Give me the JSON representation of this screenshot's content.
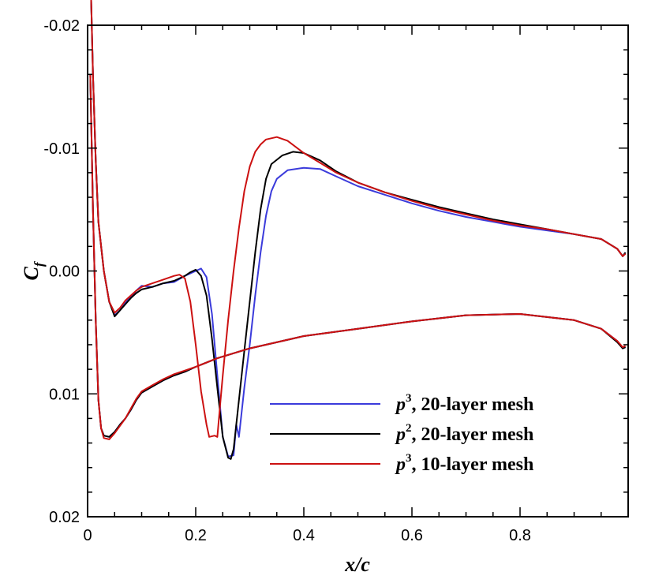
{
  "chart_data": {
    "type": "line",
    "xlabel": "x/c",
    "ylabel": {
      "main": "C",
      "sub": "f"
    },
    "xlim": [
      0,
      1.0
    ],
    "ylim": [
      -0.02,
      0.02
    ],
    "y_inverted": true,
    "grid": false,
    "legend_position": "lower-right",
    "x_ticks": [
      {
        "v": 0.0,
        "label": "0"
      },
      {
        "v": 0.2,
        "label": "0.2"
      },
      {
        "v": 0.4,
        "label": "0.4"
      },
      {
        "v": 0.6,
        "label": "0.6"
      },
      {
        "v": 0.8,
        "label": "0.8"
      }
    ],
    "y_ticks": [
      {
        "v": -0.02,
        "label": "-0.02"
      },
      {
        "v": -0.01,
        "label": "-0.01"
      },
      {
        "v": 0.0,
        "label": "0.00"
      },
      {
        "v": 0.01,
        "label": "0.01"
      },
      {
        "v": 0.02,
        "label": "0.02"
      }
    ],
    "series": [
      {
        "name": "p3, 20-layer mesh",
        "legend": {
          "var": "p",
          "sup": "3",
          "text": ", 20-layer mesh"
        },
        "color": "#3b3bdb",
        "upper": [
          [
            0.005,
            -0.025
          ],
          [
            0.01,
            -0.016
          ],
          [
            0.015,
            -0.009
          ],
          [
            0.02,
            -0.004
          ],
          [
            0.03,
            0.0
          ],
          [
            0.04,
            0.0025
          ],
          [
            0.05,
            0.0036
          ],
          [
            0.06,
            0.0032
          ],
          [
            0.07,
            0.0026
          ],
          [
            0.08,
            0.0021
          ],
          [
            0.09,
            0.0016
          ],
          [
            0.1,
            0.0012
          ],
          [
            0.12,
            0.0013
          ],
          [
            0.14,
            0.001
          ],
          [
            0.16,
            0.0009
          ],
          [
            0.18,
            0.0004
          ],
          [
            0.2,
            0.0
          ],
          [
            0.21,
            -0.0002
          ],
          [
            0.22,
            0.0005
          ],
          [
            0.23,
            0.0035
          ],
          [
            0.24,
            0.0085
          ],
          [
            0.25,
            0.0135
          ],
          [
            0.26,
            0.0151
          ],
          [
            0.27,
            0.015
          ],
          [
            0.275,
            0.0125
          ],
          [
            0.28,
            0.0135
          ],
          [
            0.29,
            0.0095
          ],
          [
            0.3,
            0.006
          ],
          [
            0.31,
            0.002
          ],
          [
            0.32,
            -0.0015
          ],
          [
            0.33,
            -0.0045
          ],
          [
            0.34,
            -0.0065
          ],
          [
            0.35,
            -0.0075
          ],
          [
            0.37,
            -0.0082
          ],
          [
            0.4,
            -0.0084
          ],
          [
            0.43,
            -0.0083
          ],
          [
            0.46,
            -0.0077
          ],
          [
            0.5,
            -0.0069
          ],
          [
            0.55,
            -0.0062
          ],
          [
            0.6,
            -0.0055
          ],
          [
            0.65,
            -0.0049
          ],
          [
            0.7,
            -0.0044
          ],
          [
            0.75,
            -0.004
          ],
          [
            0.8,
            -0.0036
          ],
          [
            0.85,
            -0.0033
          ],
          [
            0.9,
            -0.003
          ],
          [
            0.95,
            -0.0026
          ],
          [
            0.98,
            -0.0018
          ],
          [
            0.99,
            -0.0012
          ],
          [
            0.995,
            -0.0015
          ]
        ],
        "lower": [
          [
            0.005,
            -0.016
          ],
          [
            0.01,
            -0.005
          ],
          [
            0.015,
            0.004
          ],
          [
            0.02,
            0.0105
          ],
          [
            0.025,
            0.0128
          ],
          [
            0.03,
            0.0134
          ],
          [
            0.04,
            0.0135
          ],
          [
            0.05,
            0.0131
          ],
          [
            0.06,
            0.0125
          ],
          [
            0.07,
            0.012
          ],
          [
            0.08,
            0.0113
          ],
          [
            0.09,
            0.0105
          ],
          [
            0.1,
            0.0099
          ],
          [
            0.12,
            0.0094
          ],
          [
            0.14,
            0.0089
          ],
          [
            0.16,
            0.0085
          ],
          [
            0.18,
            0.0082
          ],
          [
            0.2,
            0.0078
          ],
          [
            0.24,
            0.0071
          ],
          [
            0.3,
            0.0063
          ],
          [
            0.4,
            0.0053
          ],
          [
            0.5,
            0.0047
          ],
          [
            0.6,
            0.0041
          ],
          [
            0.7,
            0.0036
          ],
          [
            0.8,
            0.0035
          ],
          [
            0.9,
            0.004
          ],
          [
            0.95,
            0.0047
          ],
          [
            0.98,
            0.0057
          ],
          [
            0.99,
            0.0063
          ],
          [
            0.995,
            0.0062
          ]
        ]
      },
      {
        "name": "p2, 20-layer mesh",
        "legend": {
          "var": "p",
          "sup": "2",
          "text": ", 20-layer mesh"
        },
        "color": "#000000",
        "upper": [
          [
            0.005,
            -0.025
          ],
          [
            0.01,
            -0.016
          ],
          [
            0.015,
            -0.009
          ],
          [
            0.02,
            -0.004
          ],
          [
            0.03,
            0.0
          ],
          [
            0.04,
            0.0025
          ],
          [
            0.05,
            0.0037
          ],
          [
            0.06,
            0.0032
          ],
          [
            0.07,
            0.0027
          ],
          [
            0.08,
            0.0022
          ],
          [
            0.09,
            0.0018
          ],
          [
            0.1,
            0.0015
          ],
          [
            0.12,
            0.0013
          ],
          [
            0.14,
            0.001
          ],
          [
            0.16,
            0.0008
          ],
          [
            0.18,
            0.0004
          ],
          [
            0.19,
            0.0001
          ],
          [
            0.2,
            -0.0001
          ],
          [
            0.21,
            0.0004
          ],
          [
            0.22,
            0.002
          ],
          [
            0.23,
            0.0055
          ],
          [
            0.24,
            0.0095
          ],
          [
            0.25,
            0.0135
          ],
          [
            0.26,
            0.0152
          ],
          [
            0.265,
            0.0153
          ],
          [
            0.27,
            0.0145
          ],
          [
            0.28,
            0.0105
          ],
          [
            0.29,
            0.0065
          ],
          [
            0.3,
            0.0025
          ],
          [
            0.31,
            -0.0015
          ],
          [
            0.32,
            -0.005
          ],
          [
            0.33,
            -0.0075
          ],
          [
            0.34,
            -0.0087
          ],
          [
            0.36,
            -0.0094
          ],
          [
            0.38,
            -0.0097
          ],
          [
            0.4,
            -0.0096
          ],
          [
            0.43,
            -0.009
          ],
          [
            0.46,
            -0.0081
          ],
          [
            0.5,
            -0.0072
          ],
          [
            0.55,
            -0.0064
          ],
          [
            0.6,
            -0.0058
          ],
          [
            0.65,
            -0.0052
          ],
          [
            0.7,
            -0.0047
          ],
          [
            0.75,
            -0.0042
          ],
          [
            0.8,
            -0.0038
          ],
          [
            0.85,
            -0.0034
          ],
          [
            0.9,
            -0.003
          ],
          [
            0.95,
            -0.0026
          ],
          [
            0.98,
            -0.0018
          ],
          [
            0.99,
            -0.0012
          ],
          [
            0.995,
            -0.0015
          ]
        ],
        "lower": [
          [
            0.005,
            -0.016
          ],
          [
            0.01,
            -0.005
          ],
          [
            0.015,
            0.004
          ],
          [
            0.02,
            0.0105
          ],
          [
            0.025,
            0.0128
          ],
          [
            0.03,
            0.0134
          ],
          [
            0.04,
            0.0135
          ],
          [
            0.05,
            0.0131
          ],
          [
            0.06,
            0.0125
          ],
          [
            0.07,
            0.012
          ],
          [
            0.08,
            0.0113
          ],
          [
            0.09,
            0.0105
          ],
          [
            0.1,
            0.0099
          ],
          [
            0.12,
            0.0094
          ],
          [
            0.14,
            0.0089
          ],
          [
            0.16,
            0.0085
          ],
          [
            0.18,
            0.0082
          ],
          [
            0.2,
            0.0078
          ],
          [
            0.24,
            0.0071
          ],
          [
            0.3,
            0.0063
          ],
          [
            0.4,
            0.0053
          ],
          [
            0.5,
            0.0047
          ],
          [
            0.6,
            0.0041
          ],
          [
            0.7,
            0.0036
          ],
          [
            0.8,
            0.0035
          ],
          [
            0.9,
            0.004
          ],
          [
            0.95,
            0.0047
          ],
          [
            0.98,
            0.0058
          ],
          [
            0.99,
            0.0063
          ],
          [
            0.995,
            0.0062
          ]
        ]
      },
      {
        "name": "p3, 10-layer mesh",
        "legend": {
          "var": "p",
          "sup": "3",
          "text": ", 10-layer mesh"
        },
        "color": "#cc1111",
        "upper": [
          [
            0.005,
            -0.025
          ],
          [
            0.01,
            -0.016
          ],
          [
            0.015,
            -0.009
          ],
          [
            0.02,
            -0.004
          ],
          [
            0.03,
            0.0
          ],
          [
            0.04,
            0.0025
          ],
          [
            0.05,
            0.0034
          ],
          [
            0.06,
            0.003
          ],
          [
            0.07,
            0.0024
          ],
          [
            0.08,
            0.002
          ],
          [
            0.09,
            0.0016
          ],
          [
            0.1,
            0.0013
          ],
          [
            0.12,
            0.001
          ],
          [
            0.14,
            0.0007
          ],
          [
            0.16,
            0.0004
          ],
          [
            0.17,
            0.0003
          ],
          [
            0.18,
            0.0006
          ],
          [
            0.19,
            0.0025
          ],
          [
            0.2,
            0.006
          ],
          [
            0.21,
            0.0098
          ],
          [
            0.22,
            0.0125
          ],
          [
            0.225,
            0.0135
          ],
          [
            0.235,
            0.0134
          ],
          [
            0.24,
            0.0135
          ],
          [
            0.245,
            0.011
          ],
          [
            0.25,
            0.0085
          ],
          [
            0.26,
            0.004
          ],
          [
            0.27,
            0.0
          ],
          [
            0.28,
            -0.0035
          ],
          [
            0.29,
            -0.0065
          ],
          [
            0.3,
            -0.0085
          ],
          [
            0.31,
            -0.0097
          ],
          [
            0.32,
            -0.0103
          ],
          [
            0.33,
            -0.0107
          ],
          [
            0.35,
            -0.0109
          ],
          [
            0.37,
            -0.0106
          ],
          [
            0.4,
            -0.0096
          ],
          [
            0.43,
            -0.0088
          ],
          [
            0.46,
            -0.008
          ],
          [
            0.5,
            -0.0072
          ],
          [
            0.55,
            -0.0064
          ],
          [
            0.6,
            -0.0057
          ],
          [
            0.65,
            -0.0051
          ],
          [
            0.7,
            -0.0046
          ],
          [
            0.75,
            -0.0041
          ],
          [
            0.8,
            -0.0037
          ],
          [
            0.85,
            -0.0034
          ],
          [
            0.9,
            -0.003
          ],
          [
            0.95,
            -0.0026
          ],
          [
            0.98,
            -0.0018
          ],
          [
            0.99,
            -0.0012
          ],
          [
            0.995,
            -0.0014
          ]
        ],
        "lower": [
          [
            0.005,
            -0.016
          ],
          [
            0.01,
            -0.005
          ],
          [
            0.015,
            0.004
          ],
          [
            0.02,
            0.0105
          ],
          [
            0.025,
            0.0128
          ],
          [
            0.03,
            0.0136
          ],
          [
            0.04,
            0.0137
          ],
          [
            0.05,
            0.0132
          ],
          [
            0.06,
            0.0126
          ],
          [
            0.07,
            0.012
          ],
          [
            0.08,
            0.0112
          ],
          [
            0.09,
            0.0104
          ],
          [
            0.1,
            0.0098
          ],
          [
            0.12,
            0.0093
          ],
          [
            0.14,
            0.0088
          ],
          [
            0.16,
            0.0084
          ],
          [
            0.18,
            0.0081
          ],
          [
            0.2,
            0.0078
          ],
          [
            0.24,
            0.0071
          ],
          [
            0.3,
            0.0063
          ],
          [
            0.4,
            0.0053
          ],
          [
            0.5,
            0.0047
          ],
          [
            0.6,
            0.0041
          ],
          [
            0.7,
            0.0036
          ],
          [
            0.8,
            0.0035
          ],
          [
            0.9,
            0.004
          ],
          [
            0.95,
            0.0047
          ],
          [
            0.98,
            0.0057
          ],
          [
            0.99,
            0.0062
          ],
          [
            0.995,
            0.0061
          ]
        ]
      }
    ]
  }
}
